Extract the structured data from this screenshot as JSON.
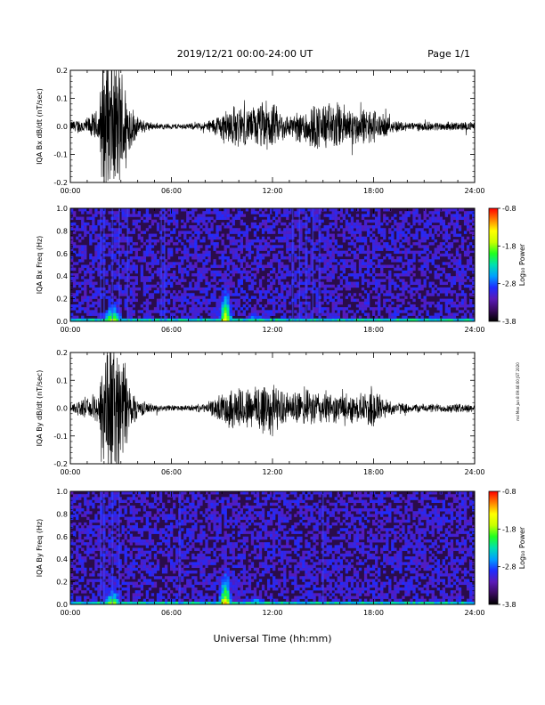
{
  "header": {
    "date_range": "2019/12/21  00:00-24:00 UT",
    "page": "Page 1/1"
  },
  "side_note": "md Mon Jun 8 09:46:00 JST 2020",
  "xaxis": {
    "label": "Universal Time (hh:mm)",
    "ticks": [
      "00:00",
      "06:00",
      "12:00",
      "18:00",
      "24:00"
    ]
  },
  "colors": {
    "trace": "#000000",
    "spec_background": "#2a0c4a",
    "colormap": [
      "#000000",
      "#3a0a60",
      "#5a1ab8",
      "#1e2cff",
      "#00a0ff",
      "#00e0b0",
      "#20ff20",
      "#c8ff00",
      "#ffff00",
      "#ff8000",
      "#ff0000"
    ]
  },
  "chart_data": [
    {
      "type": "line",
      "panel": "bx-waveform",
      "ylabel": "IQA Bx dB/dt (nT/sec)",
      "xlim": [
        0,
        24
      ],
      "ylim": [
        -0.2,
        0.2
      ],
      "yticks": [
        "0.2",
        "0.1",
        "0.0",
        "-0.1",
        "-0.2"
      ],
      "x_ticks": [
        "00:00",
        "06:00",
        "12:00",
        "18:00",
        "24:00"
      ],
      "amplitude_envelope": {
        "x_hours": [
          0,
          1,
          1.7,
          1.9,
          2.5,
          3.1,
          3.6,
          4,
          5,
          6,
          7,
          8,
          8.5,
          9,
          9.5,
          10,
          10.5,
          11,
          11.5,
          12,
          12.5,
          13,
          13.5,
          14,
          14.5,
          15,
          15.5,
          16,
          16.5,
          17,
          17.5,
          18,
          18.5,
          19,
          20,
          21,
          22,
          23,
          24
        ],
        "amplitude": [
          0.02,
          0.03,
          0.06,
          0.25,
          0.25,
          0.2,
          0.08,
          0.03,
          0.01,
          0.01,
          0.01,
          0.015,
          0.03,
          0.05,
          0.07,
          0.07,
          0.06,
          0.07,
          0.09,
          0.08,
          0.05,
          0.04,
          0.05,
          0.07,
          0.08,
          0.08,
          0.08,
          0.08,
          0.07,
          0.06,
          0.06,
          0.06,
          0.04,
          0.025,
          0.015,
          0.015,
          0.015,
          0.015,
          0.015
        ]
      }
    },
    {
      "type": "heatmap",
      "panel": "bx-spectrogram",
      "ylabel": "IQA Bx Freq (Hz)",
      "xlim": [
        0,
        24
      ],
      "ylim": [
        0,
        1.0
      ],
      "yticks": [
        "1.0",
        "0.8",
        "0.6",
        "0.4",
        "0.2",
        "0.0"
      ],
      "x_ticks": [
        "00:00",
        "06:00",
        "12:00",
        "18:00",
        "24:00"
      ],
      "colorbar": {
        "label": "Log₁₀ Power",
        "ticks": [
          "-0.8",
          "-1.8",
          "-2.8",
          "-3.8"
        ],
        "range": [
          -3.8,
          -0.8
        ]
      },
      "vertical_streaks_hours": [
        1.8,
        2.0,
        2.5,
        2.9,
        3.4,
        5.4,
        5.6,
        13.2,
        13.6,
        14.0,
        14.4,
        14.8
      ],
      "enhancements": [
        {
          "t_center": 2.5,
          "width_h": 1.3,
          "fmax": 0.12,
          "level": 0.75
        },
        {
          "t_center": 9.2,
          "width_h": 0.9,
          "fmax": 0.2,
          "level": 0.85
        },
        {
          "t_center": 11.0,
          "width_h": 1.5,
          "fmax": 0.07,
          "level": 0.5
        },
        {
          "t_center": 15.5,
          "width_h": 4.0,
          "fmax": 0.04,
          "level": 0.4
        }
      ]
    },
    {
      "type": "line",
      "panel": "by-waveform",
      "ylabel": "IQA By dB/dt (nT/sec)",
      "xlim": [
        0,
        24
      ],
      "ylim": [
        -0.2,
        0.2
      ],
      "yticks": [
        "0.2",
        "0.1",
        "0.0",
        "-0.1",
        "-0.2"
      ],
      "x_ticks": [
        "00:00",
        "06:00",
        "12:00",
        "18:00",
        "24:00"
      ],
      "amplitude_envelope": {
        "x_hours": [
          0,
          1,
          1.7,
          1.9,
          2.5,
          3.1,
          3.6,
          4,
          5,
          6,
          7,
          8,
          8.5,
          9,
          9.5,
          10,
          10.5,
          11,
          11.5,
          12,
          12.5,
          13,
          13.5,
          14,
          14.5,
          15,
          15.5,
          16,
          16.5,
          17,
          17.5,
          18,
          18.5,
          19,
          20,
          21,
          22,
          23,
          24
        ],
        "amplitude": [
          0.02,
          0.03,
          0.06,
          0.25,
          0.25,
          0.2,
          0.08,
          0.03,
          0.012,
          0.01,
          0.01,
          0.015,
          0.03,
          0.05,
          0.07,
          0.08,
          0.07,
          0.08,
          0.12,
          0.09,
          0.06,
          0.05,
          0.06,
          0.06,
          0.06,
          0.06,
          0.05,
          0.05,
          0.05,
          0.05,
          0.05,
          0.09,
          0.04,
          0.025,
          0.015,
          0.015,
          0.015,
          0.015,
          0.015
        ]
      }
    },
    {
      "type": "heatmap",
      "panel": "by-spectrogram",
      "ylabel": "IQA By Freq (Hz)",
      "xlim": [
        0,
        24
      ],
      "ylim": [
        0,
        1.0
      ],
      "yticks": [
        "1.0",
        "0.8",
        "0.6",
        "0.4",
        "0.2",
        "0.0"
      ],
      "x_ticks": [
        "00:00",
        "06:00",
        "12:00",
        "18:00",
        "24:00"
      ],
      "colorbar": {
        "label": "Log₁₀ Power",
        "ticks": [
          "-0.8",
          "-1.8",
          "-2.8",
          "-3.8"
        ],
        "range": [
          -3.8,
          -0.8
        ]
      },
      "vertical_streaks_hours": [
        1.8,
        2.0,
        2.5,
        2.9,
        6.5,
        15.0
      ],
      "enhancements": [
        {
          "t_center": 2.5,
          "width_h": 1.3,
          "fmax": 0.12,
          "level": 0.72
        },
        {
          "t_center": 9.2,
          "width_h": 0.9,
          "fmax": 0.22,
          "level": 0.82
        },
        {
          "t_center": 11.0,
          "width_h": 1.5,
          "fmax": 0.07,
          "level": 0.5
        },
        {
          "t_center": 15.5,
          "width_h": 4.0,
          "fmax": 0.04,
          "level": 0.4
        }
      ]
    }
  ]
}
